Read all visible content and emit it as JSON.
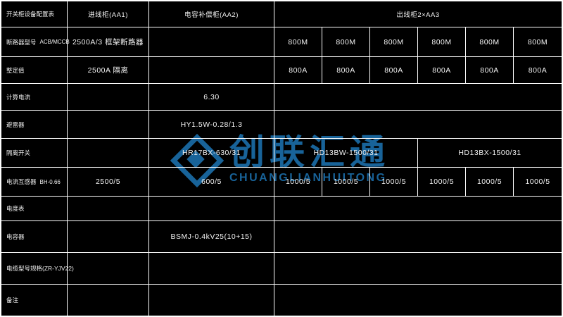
{
  "colors": {
    "background": "#000000",
    "grid_line": "#ffffff",
    "text": "#ffffff",
    "watermark_blue": "#186399"
  },
  "table": {
    "title": "开关柜设备配置表",
    "columns": {
      "aa1": "进线柜(AA1)",
      "aa2": "电容补偿柜(AA2)",
      "aa3": "出线柜2×AA3"
    },
    "rows": {
      "breaker": {
        "label": "断路器型号",
        "sublabel": "ACB/MCCB",
        "aa1": "2500A/3 框架断路器",
        "aa2": "",
        "feeders": [
          "800M",
          "800M",
          "800M",
          "800M",
          "800M",
          "800M"
        ]
      },
      "setting": {
        "label": "整定值",
        "aa1": "2500A 隔离",
        "aa2": "",
        "feeders": [
          "800A",
          "800A",
          "800A",
          "800A",
          "800A",
          "800A"
        ]
      },
      "calc_current": {
        "label": "计算电流",
        "aa1": "",
        "aa2": "6.30",
        "feeders_merged": ""
      },
      "arrester": {
        "label": "避雷器",
        "aa1": "",
        "aa2": "HY1.5W-0.28/1.3",
        "feeders_merged": ""
      },
      "isolator": {
        "label": "隔离开关",
        "aa1": "",
        "aa2": "HR17BX-630/31",
        "feeders_left": "HD13BW-1500/31",
        "feeders_right": "HD13BX-1500/31"
      },
      "ct": {
        "label": "电流互感器",
        "sublabel": "BH-0.66",
        "aa1": "2500/5",
        "aa2": "600/5",
        "feeders": [
          "1000/5",
          "1000/5",
          "1000/5",
          "1000/5",
          "1000/5",
          "1000/5"
        ]
      },
      "meter": {
        "label": "电度表",
        "aa1": "",
        "aa2": "",
        "feeders_merged": ""
      },
      "capacitor": {
        "label": "电容器",
        "aa1": "",
        "aa2": "BSMJ-0.4kV25(10+15)",
        "feeders_merged": ""
      },
      "cable": {
        "label": "电缆型号规格(ZR-YJV22)",
        "aa1": "",
        "aa2": "",
        "feeders_merged": ""
      },
      "remark": {
        "label": "备注",
        "aa1": "",
        "aa2": "",
        "feeders_merged": ""
      }
    }
  },
  "watermark": {
    "cn": "创联汇通",
    "en": "CHUANGLIANHUITONG"
  }
}
